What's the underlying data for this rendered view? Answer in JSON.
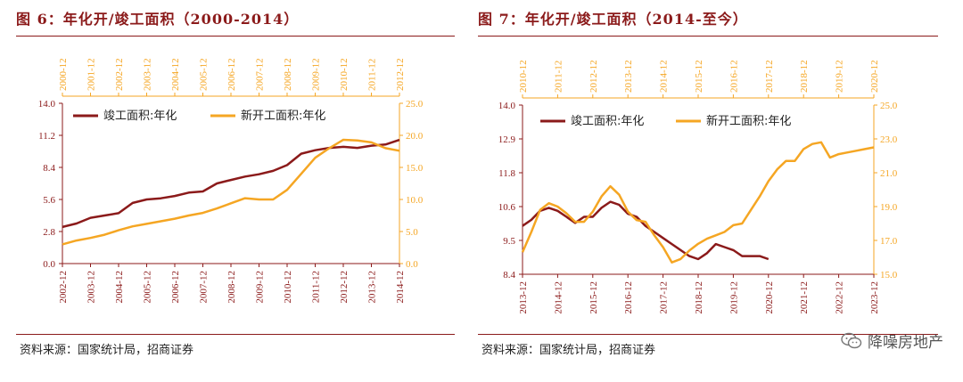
{
  "left": {
    "title": "图 6：年化开/竣工面积（2000-2014）",
    "source": "资料来源：国家统计局，招商证券"
  },
  "right": {
    "title": "图 7：年化开/竣工面积（2014-至今）",
    "source": "资料来源：国家统计局，招商证券"
  },
  "watermark": "降噪房地产",
  "colors": {
    "completed": "#8B1A1A",
    "started": "#F5A623",
    "title": "#8B1A1A"
  },
  "chart_data": [
    {
      "type": "line",
      "title": "年化开/竣工面积（2000-2014）",
      "bottom_axis": {
        "categories": [
          "2002-12",
          "2003-12",
          "2004-12",
          "2005-12",
          "2006-12",
          "2007-12",
          "2008-12",
          "2009-12",
          "2010-12",
          "2011-12",
          "2012-12",
          "2013-12",
          "2014-12"
        ]
      },
      "top_axis": {
        "categories": [
          "2000-12",
          "2001-12",
          "2002-12",
          "2003-12",
          "2004-12",
          "2005-12",
          "2006-12",
          "2007-12",
          "2008-12",
          "2009-12",
          "2010-12",
          "2011-12",
          "2012-12"
        ]
      },
      "y_left": {
        "ticks": [
          "14.0",
          "11.2",
          "8.4",
          "5.6",
          "2.8",
          "0.0"
        ],
        "range": [
          0,
          14
        ]
      },
      "y_right": {
        "ticks": [
          "25.0",
          "20.0",
          "15.0",
          "10.0",
          "5.0",
          "0.0"
        ],
        "range": [
          0,
          25
        ]
      },
      "legend": [
        "竣工面积:年化",
        "新开工面积:年化"
      ],
      "series": [
        {
          "name": "竣工面积:年化",
          "axis": "left",
          "t": [
            0,
            6,
            12,
            18,
            24,
            30,
            36,
            42,
            48,
            54,
            60,
            66,
            72,
            78,
            84,
            90,
            96,
            102,
            108,
            114,
            120,
            126,
            132,
            138,
            144
          ],
          "values": [
            3.2,
            3.5,
            4.0,
            4.2,
            4.4,
            5.3,
            5.6,
            5.7,
            5.9,
            6.2,
            6.3,
            7.0,
            7.3,
            7.6,
            7.8,
            8.1,
            8.6,
            9.6,
            9.9,
            10.1,
            10.2,
            10.1,
            10.3,
            10.4,
            10.8
          ]
        },
        {
          "name": "新开工面积:年化",
          "axis": "right",
          "t": [
            0,
            6,
            12,
            18,
            24,
            30,
            36,
            42,
            48,
            54,
            60,
            66,
            72,
            78,
            84,
            90,
            96,
            102,
            108,
            114,
            120,
            126,
            132,
            138,
            144
          ],
          "values": [
            3.0,
            3.6,
            4.0,
            4.5,
            5.2,
            5.8,
            6.2,
            6.6,
            7.0,
            7.5,
            7.9,
            8.6,
            9.4,
            10.2,
            10.0,
            10.0,
            11.5,
            14.0,
            16.5,
            18.0,
            19.3,
            19.2,
            18.9,
            18.0,
            17.6
          ]
        }
      ]
    },
    {
      "type": "line",
      "title": "年化开/竣工面积（2014-至今）",
      "bottom_axis": {
        "categories": [
          "2013-12",
          "2014-12",
          "2015-12",
          "2016-12",
          "2017-12",
          "2018-12",
          "2019-12",
          "2020-12",
          "2021-12",
          "2022-12",
          "2023-12"
        ]
      },
      "top_axis": {
        "categories": [
          "2010-12",
          "2011-12",
          "2012-12",
          "2013-12",
          "2014-12",
          "2015-12",
          "2016-12",
          "2017-12",
          "2018-12",
          "2019-12",
          "2020-12"
        ]
      },
      "y_left": {
        "ticks": [
          "14.0",
          "12.9",
          "11.8",
          "10.6",
          "9.5",
          "8.4"
        ],
        "range": [
          8.4,
          14
        ]
      },
      "y_right": {
        "ticks": [
          "25.0",
          "23.0",
          "21.0",
          "19.0",
          "17.0",
          "15.0"
        ],
        "range": [
          15,
          25
        ]
      },
      "legend": [
        "竣工面积:年化",
        "新开工面积:年化"
      ],
      "series": [
        {
          "name": "竣工面积:年化",
          "axis": "left",
          "t": [
            0,
            3,
            6,
            9,
            12,
            15,
            18,
            21,
            24,
            27,
            30,
            33,
            36,
            39,
            42,
            45,
            48,
            51,
            54,
            57,
            60,
            63,
            66,
            69,
            72,
            75,
            78,
            81,
            84
          ],
          "values": [
            10.0,
            10.2,
            10.5,
            10.6,
            10.5,
            10.3,
            10.1,
            10.3,
            10.3,
            10.6,
            10.8,
            10.7,
            10.4,
            10.3,
            10.0,
            9.8,
            9.6,
            9.4,
            9.2,
            9.0,
            8.9,
            9.1,
            9.4,
            9.3,
            9.2,
            9.0,
            9.0,
            9.0,
            8.9
          ]
        },
        {
          "name": "新开工面积:年化",
          "axis": "right",
          "t": [
            0,
            3,
            6,
            9,
            12,
            15,
            18,
            21,
            24,
            27,
            30,
            33,
            36,
            39,
            42,
            45,
            48,
            51,
            54,
            57,
            60,
            63,
            66,
            69,
            72,
            75,
            78,
            81,
            84,
            87,
            90,
            93,
            96,
            99,
            102,
            105,
            108,
            111,
            114,
            117,
            120
          ],
          "values": [
            16.3,
            17.5,
            18.8,
            19.2,
            19.0,
            18.6,
            18.1,
            18.1,
            18.7,
            19.6,
            20.2,
            19.7,
            18.7,
            18.2,
            18.1,
            17.3,
            16.6,
            15.7,
            15.9,
            16.4,
            16.8,
            17.1,
            17.3,
            17.5,
            17.9,
            18.0,
            18.8,
            19.6,
            20.5,
            21.2,
            21.7,
            21.7,
            22.4,
            22.7,
            22.8,
            21.9,
            22.1,
            22.2,
            22.3,
            22.4,
            22.5
          ]
        }
      ]
    }
  ]
}
